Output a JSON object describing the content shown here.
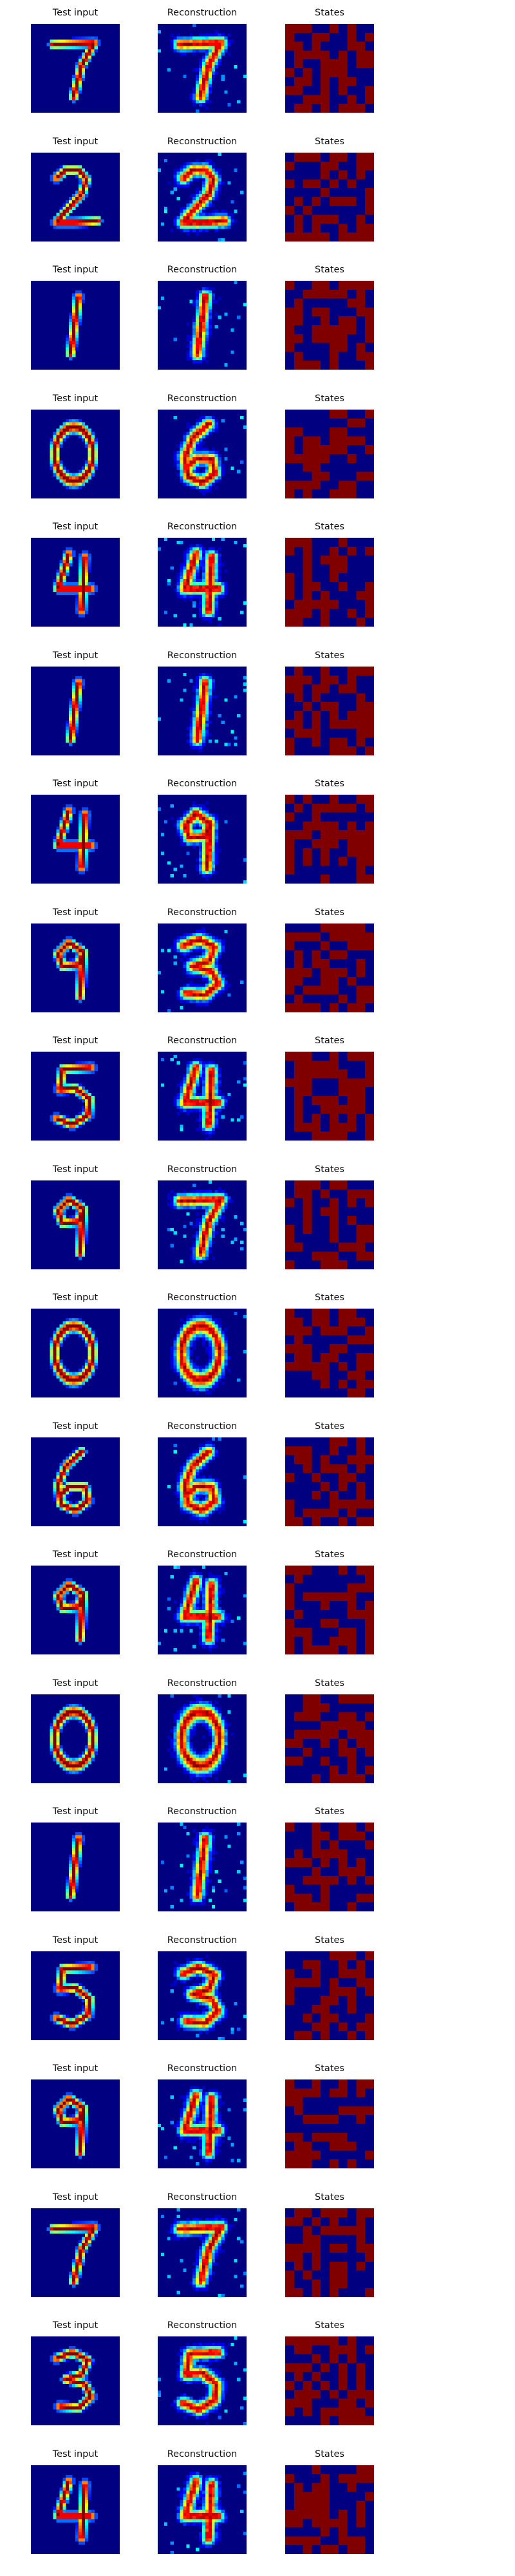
{
  "columns": [
    {
      "key": "test",
      "title": "Test input"
    },
    {
      "key": "recon",
      "title": "Reconstruction"
    },
    {
      "key": "states",
      "title": "States"
    }
  ],
  "colormap": {
    "name": "jet",
    "low": "#000080",
    "mid": "#00ffff",
    "high": "#800000"
  },
  "rows": [
    {
      "digit": "7",
      "reconstruction_digit": "7"
    },
    {
      "digit": "2",
      "reconstruction_digit": "2"
    },
    {
      "digit": "1",
      "reconstruction_digit": "1"
    },
    {
      "digit": "0",
      "reconstruction_digit": "6"
    },
    {
      "digit": "4",
      "reconstruction_digit": "4"
    },
    {
      "digit": "1",
      "reconstruction_digit": "1"
    },
    {
      "digit": "4",
      "reconstruction_digit": "9"
    },
    {
      "digit": "9",
      "reconstruction_digit": "3"
    },
    {
      "digit": "5",
      "reconstruction_digit": "4"
    },
    {
      "digit": "9",
      "reconstruction_digit": "7"
    },
    {
      "digit": "0",
      "reconstruction_digit": "0"
    },
    {
      "digit": "6",
      "reconstruction_digit": "6"
    },
    {
      "digit": "9",
      "reconstruction_digit": "4"
    },
    {
      "digit": "0",
      "reconstruction_digit": "0"
    },
    {
      "digit": "1",
      "reconstruction_digit": "1"
    },
    {
      "digit": "5",
      "reconstruction_digit": "3"
    },
    {
      "digit": "9",
      "reconstruction_digit": "4"
    },
    {
      "digit": "7",
      "reconstruction_digit": "7"
    },
    {
      "digit": "3",
      "reconstruction_digit": "5"
    },
    {
      "digit": "4",
      "reconstruction_digit": "4"
    }
  ]
}
